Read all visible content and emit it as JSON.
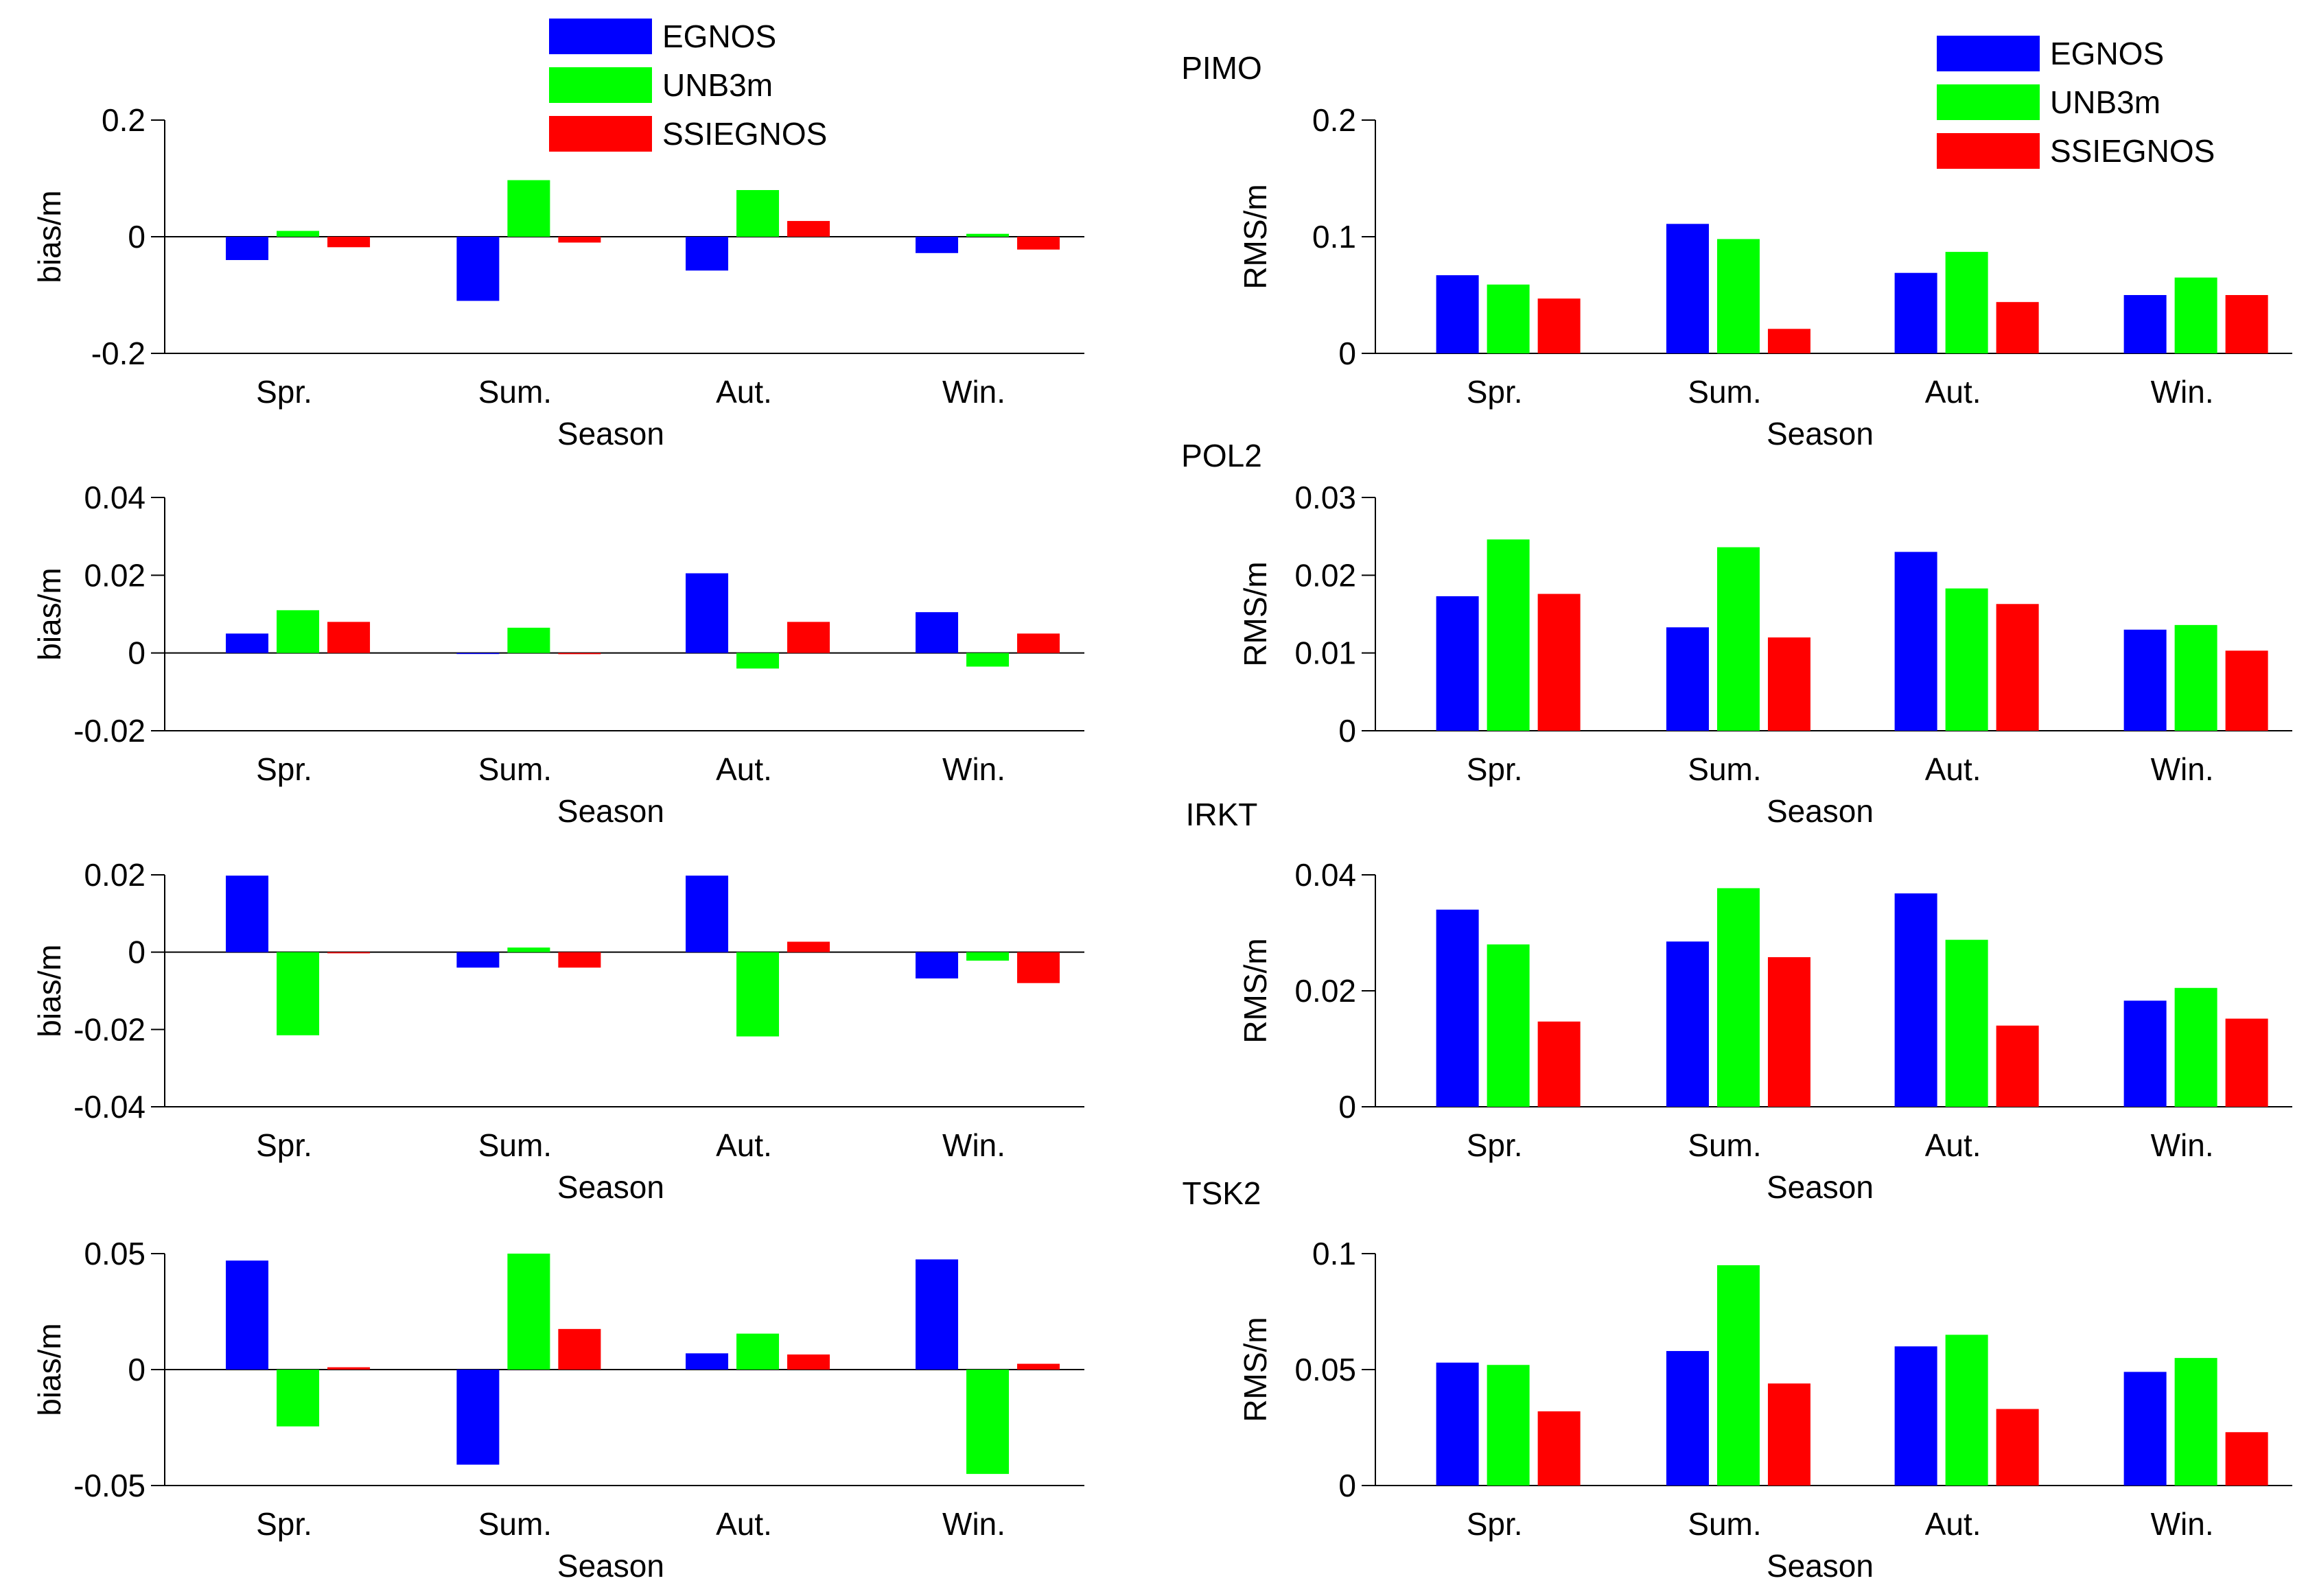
{
  "chart_data": [
    {
      "id": "bias-1",
      "type": "bar",
      "station": "",
      "categories": [
        "Spr.",
        "Sum.",
        "Aut.",
        "Win."
      ],
      "xlabel": "Season",
      "ylabel": "bias/m",
      "ylim": [
        -0.2,
        0.2
      ],
      "yticks": [
        -0.2,
        0,
        0.2
      ],
      "ytick_labels": [
        "-0.2",
        "0",
        "0.2"
      ],
      "series": [
        {
          "name": "EGNOS",
          "values": [
            -0.04,
            -0.11,
            -0.058,
            -0.028
          ]
        },
        {
          "name": "UNB3m",
          "values": [
            0.01,
            0.097,
            0.08,
            0.005
          ]
        },
        {
          "name": "SSIEGNOS",
          "values": [
            -0.018,
            -0.01,
            0.027,
            -0.022
          ]
        }
      ]
    },
    {
      "id": "rms-1",
      "type": "bar",
      "station": "PIMO",
      "categories": [
        "Spr.",
        "Sum.",
        "Aut.",
        "Win."
      ],
      "xlabel": "Season",
      "ylabel": "RMS/m",
      "ylim": [
        0,
        0.2
      ],
      "yticks": [
        0,
        0.1,
        0.2
      ],
      "ytick_labels": [
        "0",
        "0.1",
        "0.2"
      ],
      "series": [
        {
          "name": "EGNOS",
          "values": [
            0.067,
            0.111,
            0.069,
            0.05
          ]
        },
        {
          "name": "UNB3m",
          "values": [
            0.059,
            0.098,
            0.087,
            0.065
          ]
        },
        {
          "name": "SSIEGNOS",
          "values": [
            0.047,
            0.021,
            0.044,
            0.05
          ]
        }
      ]
    },
    {
      "id": "bias-2",
      "type": "bar",
      "station": "",
      "categories": [
        "Spr.",
        "Sum.",
        "Aut.",
        "Win."
      ],
      "xlabel": "Season",
      "ylabel": "bias/m",
      "ylim": [
        -0.02,
        0.04
      ],
      "yticks": [
        -0.02,
        0,
        0.02,
        0.04
      ],
      "ytick_labels": [
        "-0.02",
        "0",
        "0.02",
        "0.04"
      ],
      "series": [
        {
          "name": "EGNOS",
          "values": [
            0.005,
            0.0,
            0.0205,
            0.0105
          ]
        },
        {
          "name": "UNB3m",
          "values": [
            0.011,
            0.0065,
            -0.004,
            -0.0035
          ]
        },
        {
          "name": "SSIEGNOS",
          "values": [
            0.008,
            -0.0003,
            0.008,
            0.005
          ]
        }
      ]
    },
    {
      "id": "rms-2",
      "type": "bar",
      "station": "POL2",
      "categories": [
        "Spr.",
        "Sum.",
        "Aut.",
        "Win."
      ],
      "xlabel": "Season",
      "ylabel": "RMS/m",
      "ylim": [
        0,
        0.03
      ],
      "yticks": [
        0,
        0.01,
        0.02,
        0.03
      ],
      "ytick_labels": [
        "0",
        "0.01",
        "0.02",
        "0.03"
      ],
      "series": [
        {
          "name": "EGNOS",
          "values": [
            0.0173,
            0.0133,
            0.023,
            0.013
          ]
        },
        {
          "name": "UNB3m",
          "values": [
            0.0246,
            0.0236,
            0.0183,
            0.0136
          ]
        },
        {
          "name": "SSIEGNOS",
          "values": [
            0.0176,
            0.012,
            0.0163,
            0.0103
          ]
        }
      ]
    },
    {
      "id": "bias-3",
      "type": "bar",
      "station": "",
      "categories": [
        "Spr.",
        "Sum.",
        "Aut.",
        "Win."
      ],
      "xlabel": "Season",
      "ylabel": "bias/m",
      "ylim": [
        -0.04,
        0.02
      ],
      "yticks": [
        -0.04,
        -0.02,
        0,
        0.02
      ],
      "ytick_labels": [
        "-0.04",
        "-0.02",
        "0",
        "0.02"
      ],
      "series": [
        {
          "name": "EGNOS",
          "values": [
            0.0198,
            -0.004,
            0.0198,
            -0.0068
          ]
        },
        {
          "name": "UNB3m",
          "values": [
            -0.0215,
            0.0012,
            -0.0218,
            -0.0022
          ]
        },
        {
          "name": "SSIEGNOS",
          "values": [
            -0.0003,
            -0.004,
            0.0027,
            -0.008
          ]
        }
      ]
    },
    {
      "id": "rms-3",
      "type": "bar",
      "station": "IRKT",
      "categories": [
        "Spr.",
        "Sum.",
        "Aut.",
        "Win."
      ],
      "xlabel": "Season",
      "ylabel": "RMS/m",
      "ylim": [
        0,
        0.04
      ],
      "yticks": [
        0,
        0.02,
        0.04
      ],
      "ytick_labels": [
        "0",
        "0.02",
        "0.04"
      ],
      "series": [
        {
          "name": "EGNOS",
          "values": [
            0.034,
            0.0285,
            0.0368,
            0.0183
          ]
        },
        {
          "name": "UNB3m",
          "values": [
            0.028,
            0.0377,
            0.0288,
            0.0205
          ]
        },
        {
          "name": "SSIEGNOS",
          "values": [
            0.0147,
            0.0258,
            0.014,
            0.0152
          ]
        }
      ]
    },
    {
      "id": "bias-4",
      "type": "bar",
      "station": "",
      "categories": [
        "Spr.",
        "Sum.",
        "Aut.",
        "Win."
      ],
      "xlabel": "Season",
      "ylabel": "bias/m",
      "ylim": [
        -0.05,
        0.05
      ],
      "yticks": [
        -0.05,
        0,
        0.05
      ],
      "ytick_labels": [
        "-0.05",
        "0",
        "0.05"
      ],
      "series": [
        {
          "name": "EGNOS",
          "values": [
            0.047,
            -0.041,
            0.007,
            0.0475
          ]
        },
        {
          "name": "UNB3m",
          "values": [
            -0.0245,
            0.05,
            0.0155,
            -0.045
          ]
        },
        {
          "name": "SSIEGNOS",
          "values": [
            0.001,
            0.0175,
            0.0065,
            0.0025
          ]
        }
      ]
    },
    {
      "id": "rms-4",
      "type": "bar",
      "station": "TSK2",
      "categories": [
        "Spr.",
        "Sum.",
        "Aut.",
        "Win."
      ],
      "xlabel": "Season",
      "ylabel": "RMS/m",
      "ylim": [
        0,
        0.1
      ],
      "yticks": [
        0,
        0.05,
        0.1
      ],
      "ytick_labels": [
        "0",
        "0.05",
        "0.1"
      ],
      "series": [
        {
          "name": "EGNOS",
          "values": [
            0.053,
            0.058,
            0.06,
            0.049
          ]
        },
        {
          "name": "UNB3m",
          "values": [
            0.052,
            0.095,
            0.065,
            0.055
          ]
        },
        {
          "name": "SSIEGNOS",
          "values": [
            0.032,
            0.044,
            0.033,
            0.023
          ]
        }
      ]
    }
  ],
  "legend": [
    {
      "name": "EGNOS",
      "color": "#0000ff"
    },
    {
      "name": "UNB3m",
      "color": "#00ff00"
    },
    {
      "name": "SSIEGNOS",
      "color": "#ff0000"
    }
  ]
}
